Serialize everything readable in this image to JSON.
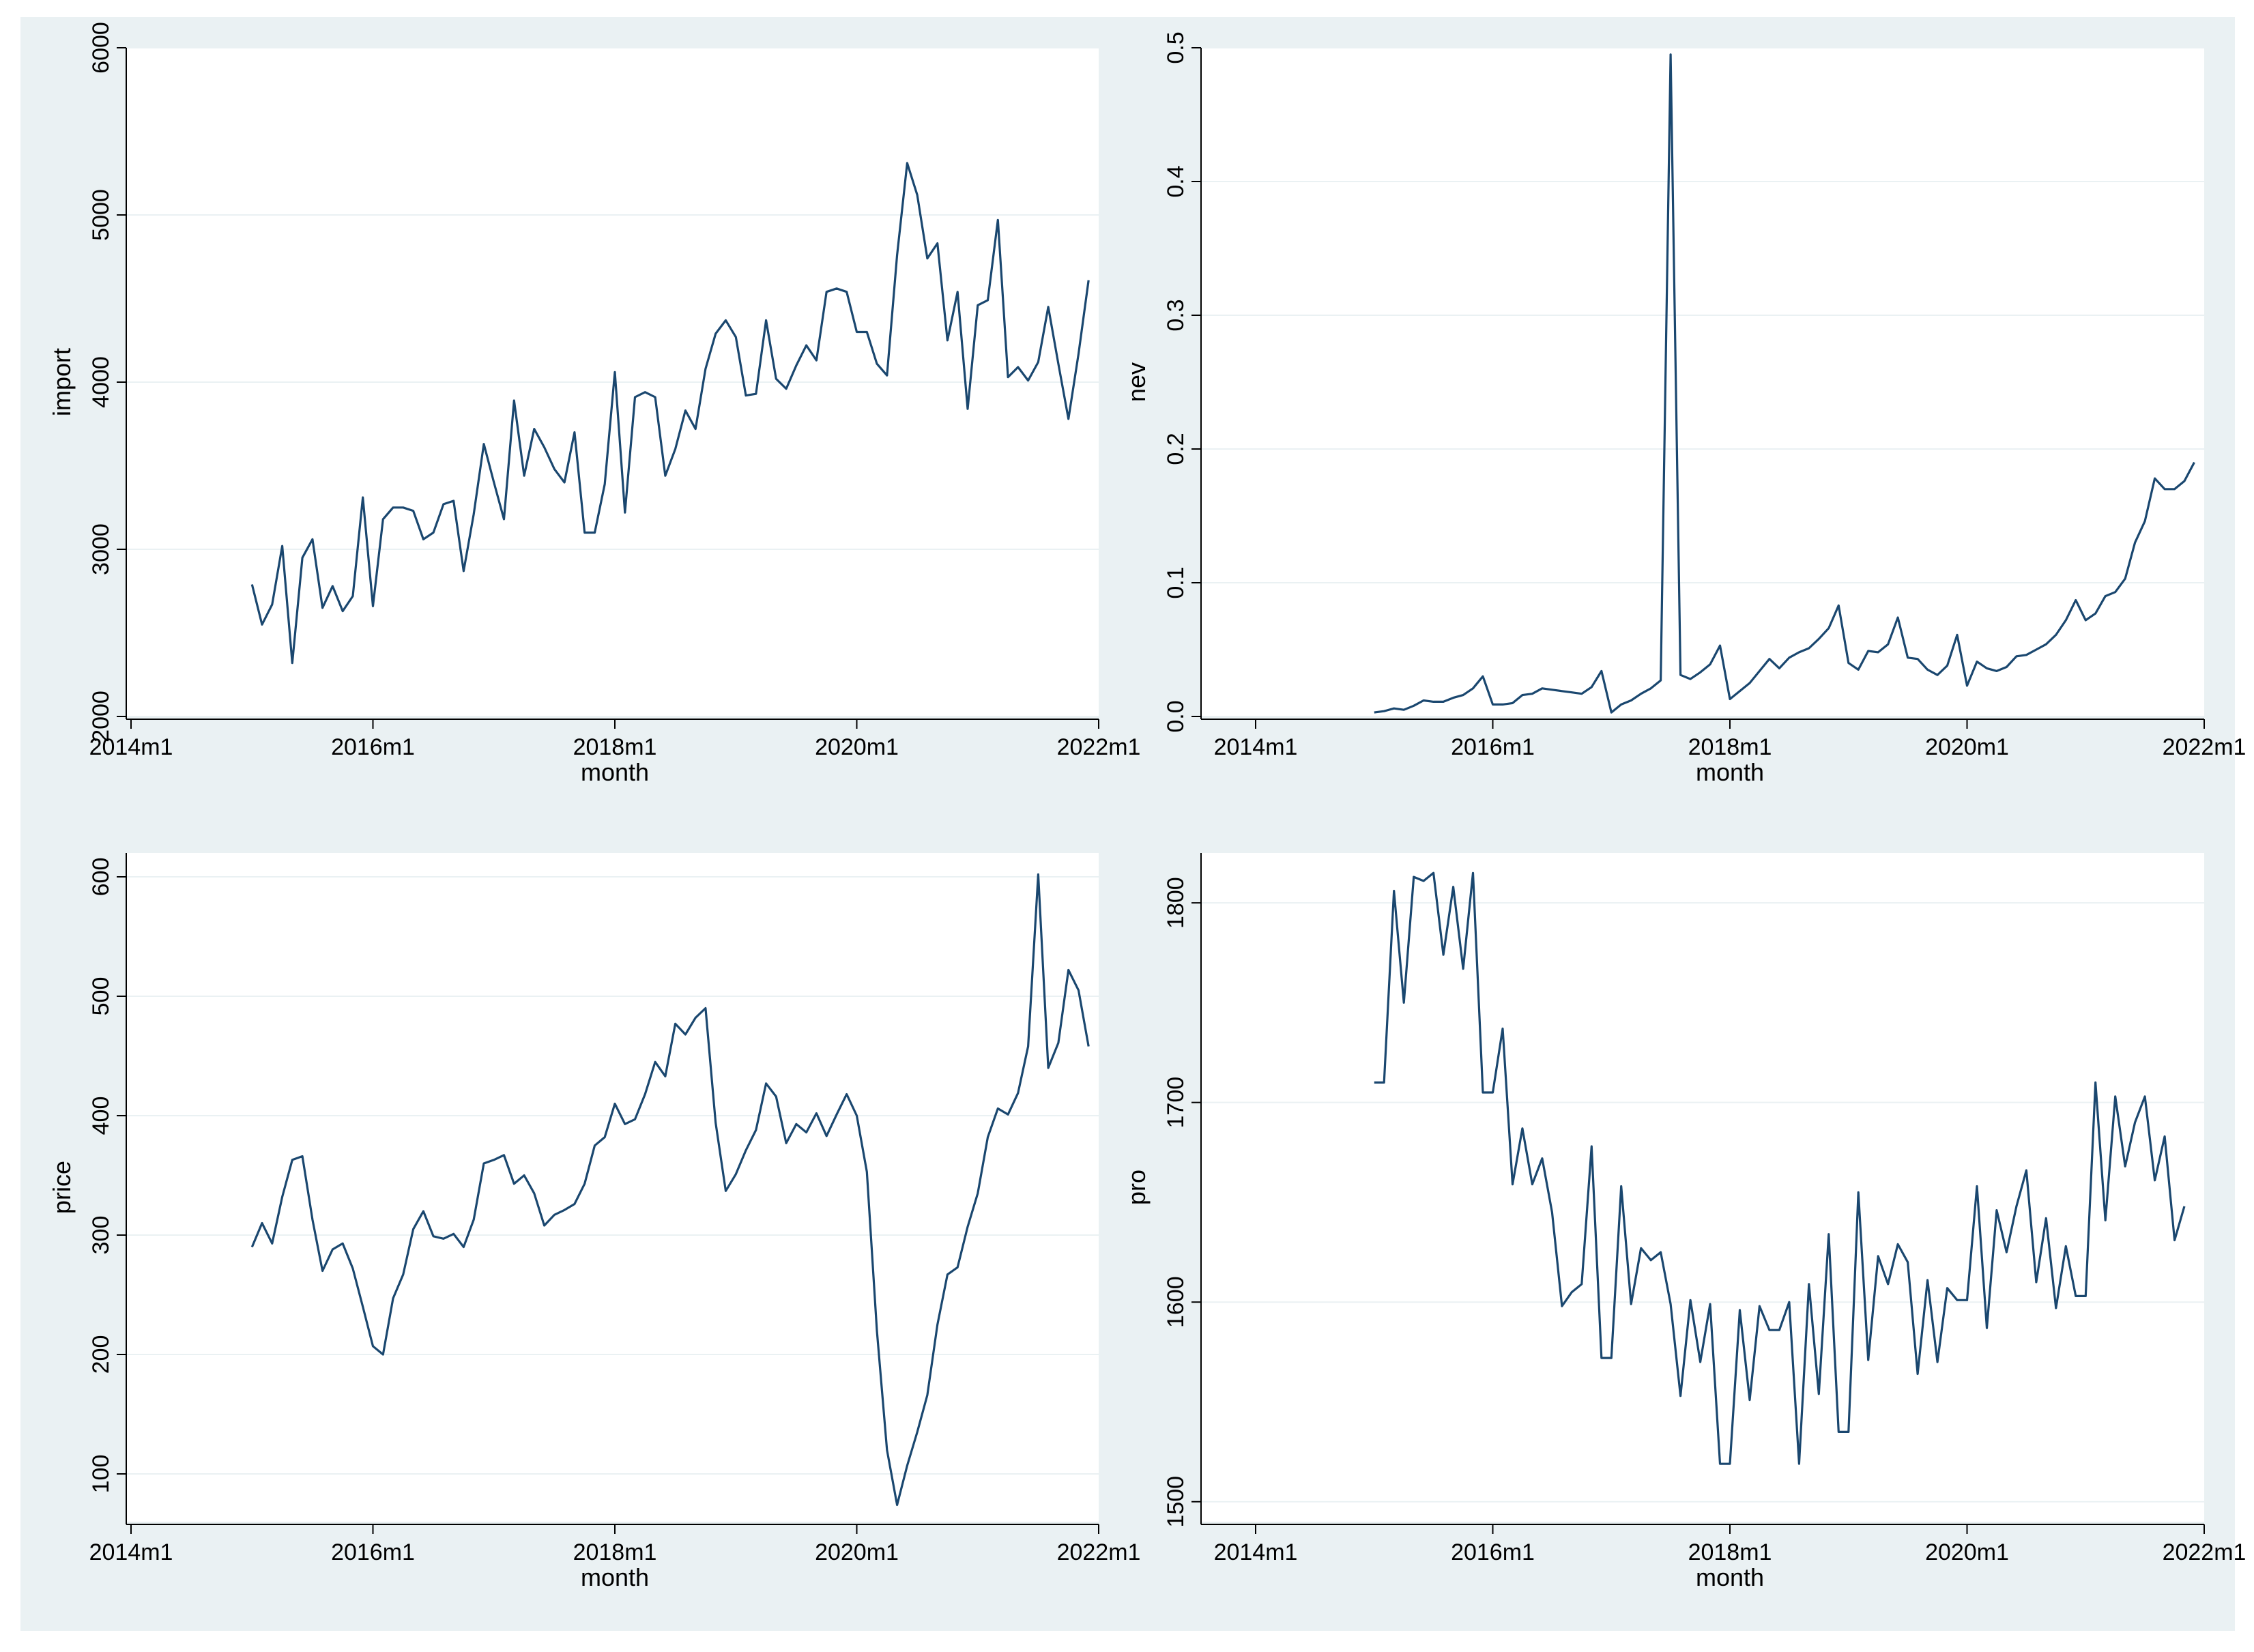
{
  "colors": {
    "panel_bg": "#eaf1f3",
    "plot_bg": "#ffffff",
    "line": "#1a476f",
    "grid": "#eaf1f3"
  },
  "chart_data": [
    {
      "type": "line",
      "name": "import",
      "xlabel": "month",
      "ylabel": "import",
      "x_start": "2015m1",
      "xlim": [
        2014.0,
        2022.0
      ],
      "x_ticks": [
        2014,
        2016,
        2018,
        2020,
        2022
      ],
      "x_tick_labels": [
        "2014m1",
        "2016m1",
        "2018m1",
        "2020m1",
        "2022m1"
      ],
      "ylim": [
        2000,
        6000
      ],
      "y_ticks": [
        2000,
        3000,
        4000,
        5000,
        6000
      ],
      "y_tick_labels": [
        "2000",
        "3000",
        "4000",
        "5000",
        "6000"
      ],
      "values": [
        2790,
        2550,
        2670,
        3020,
        2320,
        2950,
        3060,
        2650,
        2780,
        2630,
        2720,
        3310,
        2660,
        3180,
        3250,
        3250,
        3230,
        3060,
        3100,
        3270,
        3290,
        2870,
        3210,
        3630,
        3400,
        3180,
        3890,
        3440,
        3720,
        3610,
        3480,
        3400,
        3700,
        3100,
        3100,
        3390,
        4060,
        3220,
        3910,
        3940,
        3910,
        3440,
        3600,
        3830,
        3720,
        4080,
        4290,
        4370,
        4270,
        3920,
        3930,
        4370,
        4020,
        3960,
        4100,
        4220,
        4130,
        4540,
        4560,
        4540,
        4300,
        4300,
        4110,
        4040,
        4760,
        5310,
        5120,
        4740,
        4830,
        4250,
        4540,
        3840,
        4460,
        4490,
        4970,
        4030,
        4090,
        4010,
        4120,
        4450,
        4110,
        3780,
        4170,
        4610
      ]
    },
    {
      "type": "line",
      "name": "nev",
      "xlabel": "month",
      "ylabel": "nev",
      "x_start": "2015m1",
      "xlim": [
        2014.0,
        2022.0
      ],
      "x_ticks": [
        2014,
        2016,
        2018,
        2020,
        2022
      ],
      "x_tick_labels": [
        "2014m1",
        "2016m1",
        "2018m1",
        "2020m1",
        "2022m1"
      ],
      "ylim": [
        0.0,
        0.5
      ],
      "y_ticks": [
        0.0,
        0.1,
        0.2,
        0.3,
        0.4,
        0.5
      ],
      "y_tick_labels": [
        "0.0",
        "0.1",
        "0.2",
        "0.3",
        "0.4",
        "0.5"
      ],
      "values": [
        0.003,
        0.004,
        0.006,
        0.005,
        0.008,
        0.012,
        0.011,
        0.011,
        0.014,
        0.016,
        0.021,
        0.03,
        0.009,
        0.009,
        0.01,
        0.016,
        0.017,
        0.021,
        0.02,
        0.019,
        0.018,
        0.017,
        0.022,
        0.034,
        0.003,
        0.009,
        0.012,
        0.017,
        0.021,
        0.027,
        0.495,
        0.031,
        0.028,
        0.033,
        0.039,
        0.053,
        0.013,
        0.019,
        0.025,
        0.034,
        0.043,
        0.036,
        0.044,
        0.048,
        0.051,
        0.058,
        0.066,
        0.083,
        0.04,
        0.035,
        0.049,
        0.048,
        0.054,
        0.074,
        0.044,
        0.043,
        0.035,
        0.031,
        0.038,
        0.061,
        0.023,
        0.041,
        0.036,
        0.034,
        0.037,
        0.045,
        0.046,
        0.05,
        0.054,
        0.061,
        0.072,
        0.087,
        0.072,
        0.077,
        0.09,
        0.093,
        0.103,
        0.13,
        0.146,
        0.178,
        0.17,
        0.17,
        0.176,
        0.19
      ]
    },
    {
      "type": "line",
      "name": "price",
      "xlabel": "month",
      "ylabel": "price",
      "x_start": "2015m1",
      "xlim": [
        2014.0,
        2022.0
      ],
      "x_ticks": [
        2014,
        2016,
        2018,
        2020,
        2022
      ],
      "x_tick_labels": [
        "2014m1",
        "2016m1",
        "2018m1",
        "2020m1",
        "2022m1"
      ],
      "ylim": [
        60,
        620
      ],
      "y_ticks": [
        100,
        200,
        300,
        400,
        500,
        600
      ],
      "y_tick_labels": [
        "100",
        "200",
        "300",
        "400",
        "500",
        "600"
      ],
      "values": [
        290,
        310,
        293,
        332,
        363,
        366,
        313,
        270,
        288,
        293,
        272,
        240,
        207,
        200,
        247,
        267,
        305,
        320,
        299,
        297,
        301,
        290,
        313,
        360,
        363,
        367,
        343,
        350,
        335,
        308,
        317,
        321,
        326,
        343,
        375,
        382,
        410,
        393,
        397,
        418,
        445,
        433,
        477,
        468,
        482,
        490,
        394,
        337,
        351,
        371,
        388,
        427,
        416,
        377,
        393,
        386,
        402,
        383,
        401,
        418,
        400,
        353,
        220,
        120,
        74,
        107,
        135,
        166,
        225,
        267,
        273,
        307,
        335,
        382,
        406,
        401,
        419,
        458,
        602,
        440,
        461,
        522,
        505,
        458
      ]
    },
    {
      "type": "line",
      "name": "pro",
      "xlabel": "month",
      "ylabel": "pro",
      "x_start": "2015m1",
      "xlim": [
        2014.0,
        2022.0
      ],
      "x_ticks": [
        2014,
        2016,
        2018,
        2020,
        2022
      ],
      "x_tick_labels": [
        "2014m1",
        "2016m1",
        "2018m1",
        "2020m1",
        "2022m1"
      ],
      "ylim": [
        1490,
        1825
      ],
      "y_ticks": [
        1500,
        1600,
        1700,
        1800
      ],
      "y_tick_labels": [
        "1500",
        "1600",
        "1700",
        "1800"
      ],
      "values": [
        1710,
        1710,
        1806,
        1750,
        1813,
        1811,
        1815,
        1774,
        1808,
        1767,
        1815,
        1705,
        1705,
        1737,
        1659,
        1687,
        1659,
        1672,
        1645,
        1598,
        1605,
        1609,
        1678,
        1572,
        1572,
        1658,
        1599,
        1627,
        1621,
        1625,
        1599,
        1553,
        1601,
        1570,
        1599,
        1519,
        1519,
        1596,
        1551,
        1598,
        1586,
        1586,
        1600,
        1519,
        1609,
        1554,
        1634,
        1535,
        1535,
        1655,
        1571,
        1623,
        1609,
        1629,
        1620,
        1564,
        1611,
        1570,
        1607,
        1601,
        1601,
        1658,
        1587,
        1646,
        1625,
        1648,
        1666,
        1610,
        1642,
        1597,
        1628,
        1603,
        1603,
        1710,
        1641,
        1703,
        1668,
        1690,
        1703,
        1661,
        1683,
        1631,
        1648
      ]
    }
  ]
}
